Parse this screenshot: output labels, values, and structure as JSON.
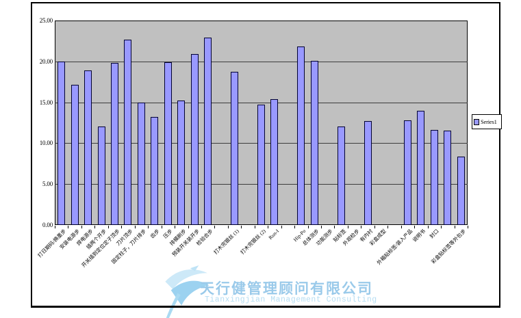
{
  "chart_data": {
    "type": "bar",
    "title": "",
    "series": [
      {
        "name": "Series1",
        "values": [
          20.0,
          17.1,
          18.9,
          12.0,
          19.8,
          22.7,
          15.0,
          13.2,
          19.9,
          15.2,
          20.9,
          22.9,
          0,
          18.7,
          0,
          14.7,
          15.4,
          0,
          21.8,
          20.1,
          0,
          12.0,
          0,
          12.7,
          0,
          0,
          12.8,
          14.0,
          11.6,
          11.5,
          8.4
        ]
      }
    ],
    "categories": [
      "打日期码/换墨步",
      "安装电源步",
      "焊电源步",
      "插两个开步",
      "开关插到定位定子顶步",
      "刀片顶步",
      "固定柱子，刀片排步",
      "齿步",
      "压步",
      "排模刷步",
      "预装开关装开步",
      "检验合步",
      "",
      "打木完银丝 (1)",
      "",
      "打木完银丝 (2)",
      "Run-I",
      "",
      "Hip-Po",
      "总体测步",
      "功能测步",
      "贴标签",
      "外观检步",
      "有内衬",
      "彩盒成型",
      "",
      "外箱贴标签/装入产品",
      "说明书",
      "封口",
      "",
      "彩盒贴标签等外包步"
    ],
    "xlabel": "",
    "ylabel": "",
    "ylim": [
      0,
      25
    ],
    "ytick_labels": [
      "0.00",
      "5.00",
      "10.00",
      "15.00",
      "20.00",
      "25.00"
    ],
    "grid": "horizontal",
    "legend_position": "right",
    "colors": {
      "bar_fill": "#9999ff",
      "bar_border": "#000030",
      "plot_background": "#c0c0c0",
      "gridline": "#3c3c3c",
      "frame_border": "#000000"
    }
  },
  "legend": {
    "series1_label": "Series1"
  },
  "watermark": {
    "company_cn": "天行健管理顾问有限公司",
    "company_en": "Tianxingjian Management Consulting",
    "color_cn": "#9acaea",
    "color_en": "#b5ddf2",
    "logo": "swoosh-bird-logo"
  }
}
